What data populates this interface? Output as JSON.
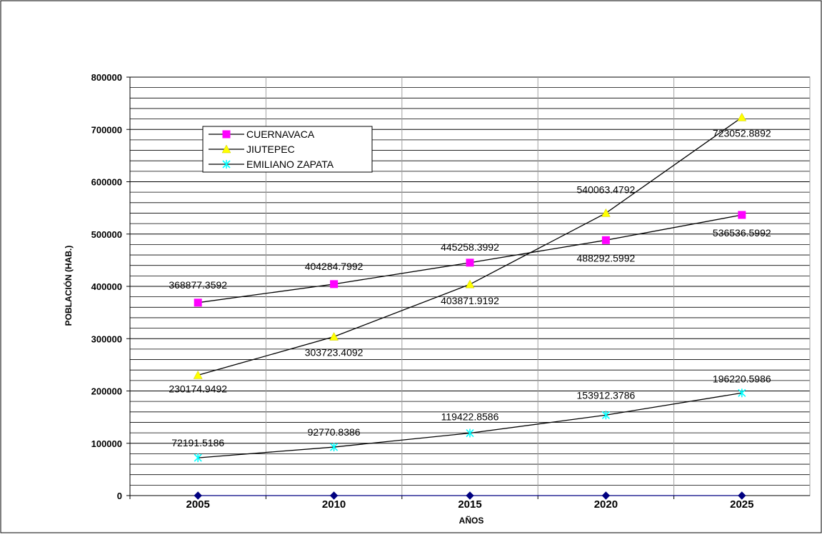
{
  "chart_data": {
    "type": "line",
    "title": "",
    "xlabel": "AÑOS",
    "ylabel": "POBLACIÓN (HAB.)",
    "categories": [
      "2005",
      "2010",
      "2015",
      "2020",
      "2025"
    ],
    "ylim": [
      0,
      800000
    ],
    "yticks": [
      "0",
      "100000",
      "200000",
      "300000",
      "400000",
      "500000",
      "600000",
      "700000",
      "800000"
    ],
    "grid": true,
    "legend_position": "top-left",
    "series": [
      {
        "name": "CUERNAVACA",
        "color": "#ff00ff",
        "marker": "square",
        "values": [
          368877.3592,
          404284.7992,
          445258.3992,
          488292.5992,
          536536.5992
        ],
        "labels": [
          "368877.3592",
          "404284.7992",
          "445258.3992",
          "488292.5992",
          "536536.5992"
        ]
      },
      {
        "name": "JIUTEPEC",
        "color": "#ffff00",
        "marker": "triangle",
        "values": [
          230174.9492,
          303723.4092,
          403871.9192,
          540063.4792,
          723052.8892
        ],
        "labels": [
          "230174.9492",
          "303723.4092",
          "403871.9192",
          "540063.4792",
          "723052.8892"
        ]
      },
      {
        "name": "EMILIANO ZAPATA",
        "color": "#00ffff",
        "marker": "star",
        "values": [
          72191.5186,
          92770.8386,
          119422.8586,
          153912.3786,
          196220.5986
        ],
        "labels": [
          "72191.5186",
          "92770.8386",
          "119422.8586",
          "153912.3786",
          "196220.5986"
        ]
      },
      {
        "color": "#000080",
        "marker": "diamond",
        "values": [
          0,
          0,
          0,
          0,
          0
        ],
        "labels": []
      }
    ]
  }
}
